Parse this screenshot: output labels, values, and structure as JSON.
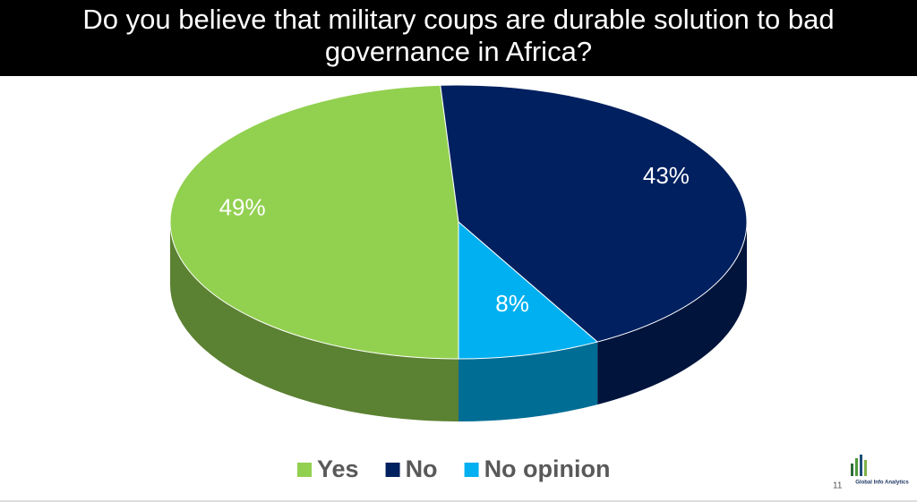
{
  "chart_data": {
    "type": "pie",
    "title": "Do you believe that military coups are durable solution to bad governance in Africa?",
    "categories": [
      "Yes",
      "No",
      "No opinion"
    ],
    "values": [
      49,
      43,
      8
    ],
    "value_labels": [
      "49%",
      "43%",
      "8%"
    ],
    "colors": [
      "#92d050",
      "#002060",
      "#00b0f0"
    ],
    "legend": "bottom"
  },
  "logo": "Global Info Analytics",
  "slide_number": "11"
}
